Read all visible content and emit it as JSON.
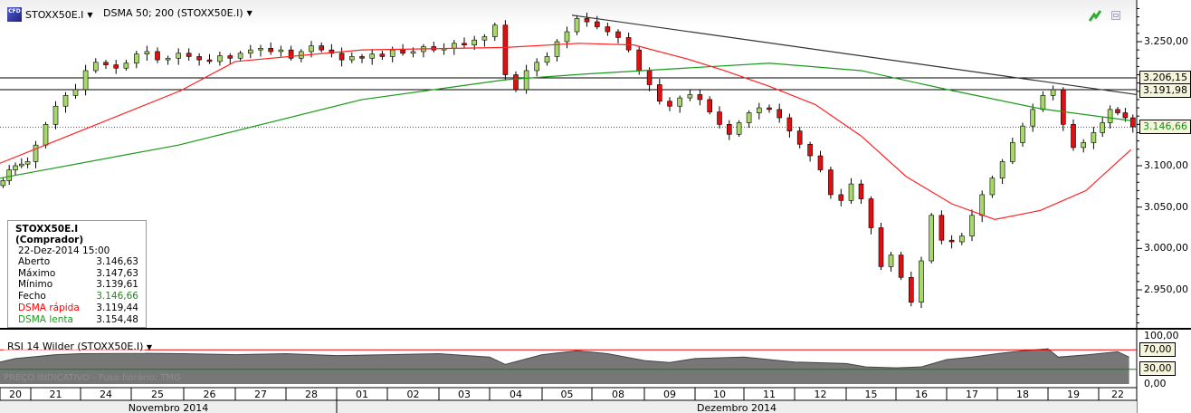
{
  "header": {
    "instrument": "STOXX50E.I",
    "indicator": "DSMA 50; 200 (STOXX50E.I)",
    "cfd_badge": "CFD"
  },
  "legend": {
    "title": "STOXX50E.I (Comprador)",
    "datetime": "22-Dez-2014 15:00",
    "rows": [
      {
        "label": "Aberto",
        "value": "3.146,63"
      },
      {
        "label": "Máximo",
        "value": "3.147,63"
      },
      {
        "label": "Mínimo",
        "value": "3.139,61"
      },
      {
        "label": "Fecho",
        "value": "3.146,66"
      },
      {
        "label": "DSMA rápida",
        "value": "3.119,44"
      },
      {
        "label": "DSMA lenta",
        "value": "3.154,48"
      }
    ]
  },
  "price_axis": {
    "ticks": [
      "3.250,00",
      "3.100,00",
      "3.050,00",
      "3.000,00",
      "2.950,00"
    ],
    "tags": [
      "3.206,15",
      "3.191,98",
      "3.146,66"
    ]
  },
  "rsi": {
    "title": "RSI 14 Wilder (STOXX50E.I)",
    "ticks": [
      "100,00",
      "0,00"
    ],
    "tags": [
      "70,00",
      "30,00"
    ]
  },
  "watermark": "PREÇO INDICATIVO - Fuso horário: TMG",
  "days": [
    "20",
    "21",
    "24",
    "25",
    "26",
    "27",
    "28",
    "01",
    "02",
    "03",
    "04",
    "05",
    "08",
    "09",
    "10",
    "11",
    "12",
    "15",
    "16",
    "17",
    "18",
    "19",
    "22"
  ],
  "months": [
    "Novembro 2014",
    "Dezembro 2014"
  ],
  "colors": {
    "up": "#a6d96a",
    "down": "#e01010",
    "fast_ma": "#ff2020",
    "slow_ma": "#1a9a1a",
    "last": "#1a8a1a"
  },
  "chart_data": {
    "type": "candlestick",
    "ylim": [
      2910,
      3290
    ],
    "closes_by_day": [
      [
        3082,
        3095,
        3100,
        3102,
        3105
      ],
      [
        3125,
        3150,
        3172,
        3185,
        3192
      ],
      [
        3215,
        3225,
        3222,
        3218,
        3224
      ],
      [
        3235,
        3238,
        3228,
        3230,
        3236
      ],
      [
        3232,
        3228,
        3226,
        3233,
        3230
      ],
      [
        3236,
        3240,
        3242,
        3238,
        3240
      ],
      [
        3230,
        3238,
        3245,
        3240,
        3236
      ],
      [
        3228,
        3232,
        3230,
        3235,
        3232
      ],
      [
        3240,
        3236,
        3238,
        3244,
        3240
      ],
      [
        3242,
        3248,
        3246,
        3252,
        3256
      ],
      [
        3270,
        3210,
        3192,
        3215,
        3225
      ],
      [
        3232,
        3250,
        3262,
        3278,
        3274
      ],
      [
        3268,
        3262,
        3255,
        3240,
        3215
      ],
      [
        3198,
        3178,
        3172,
        3182,
        3186
      ],
      [
        3180,
        3165,
        3150,
        3138,
        3152
      ],
      [
        3164,
        3170,
        3168,
        3158,
        3142
      ],
      [
        3126,
        3112,
        3095,
        3065,
        3058
      ],
      [
        3078,
        3060,
        3025,
        2978,
        2992
      ],
      [
        2965,
        2935,
        2985,
        3040,
        3010
      ],
      [
        3008,
        3015,
        3040,
        3065,
        3085
      ],
      [
        3105,
        3128,
        3148,
        3168,
        3185
      ],
      [
        3192,
        3150,
        3122,
        3128,
        3140
      ],
      [
        3152,
        3168,
        3164,
        3158,
        3147
      ]
    ],
    "fast_ma": [
      [
        0,
        3103
      ],
      [
        2.2,
        3147
      ],
      [
        3.95,
        3191
      ],
      [
        5,
        3226
      ],
      [
        7.5,
        3240
      ],
      [
        10.3,
        3243
      ],
      [
        11.75,
        3248
      ],
      [
        12.8,
        3246
      ],
      [
        13.85,
        3229
      ],
      [
        14.6,
        3215
      ],
      [
        15.5,
        3196
      ],
      [
        16.4,
        3174
      ],
      [
        17.3,
        3136
      ],
      [
        18.2,
        3087
      ],
      [
        19.1,
        3054
      ],
      [
        19.95,
        3035
      ],
      [
        20.85,
        3046
      ],
      [
        21.75,
        3070
      ],
      [
        22.85,
        3119.44
      ]
    ],
    "slow_ma": [
      [
        0,
        3085
      ],
      [
        3.9,
        3125
      ],
      [
        7.5,
        3180
      ],
      [
        10.3,
        3204
      ],
      [
        11.9,
        3211
      ],
      [
        15.5,
        3224
      ],
      [
        17.3,
        3215
      ],
      [
        19.1,
        3191
      ],
      [
        20.85,
        3169
      ],
      [
        22.85,
        3154.48
      ]
    ],
    "trendline": [
      [
        11.6,
        3282
      ],
      [
        23,
        3186
      ]
    ],
    "hlines": [
      3206.15,
      3191.98
    ],
    "last": 3146.66,
    "rsi_levels": [
      70,
      30
    ],
    "rsi_values": [
      [
        0,
        45
      ],
      [
        0.5,
        52
      ],
      [
        1,
        55
      ],
      [
        1.5,
        60
      ],
      [
        2,
        62
      ],
      [
        3,
        63
      ],
      [
        4,
        62
      ],
      [
        5,
        60
      ],
      [
        6,
        62
      ],
      [
        7,
        58
      ],
      [
        8,
        60
      ],
      [
        9,
        62
      ],
      [
        10,
        55
      ],
      [
        10.3,
        40
      ],
      [
        11,
        60
      ],
      [
        11.7,
        68
      ],
      [
        12.3,
        62
      ],
      [
        13,
        48
      ],
      [
        13.5,
        44
      ],
      [
        14,
        52
      ],
      [
        15,
        55
      ],
      [
        16,
        45
      ],
      [
        17,
        42
      ],
      [
        17.4,
        35
      ],
      [
        18,
        33
      ],
      [
        18.5,
        35
      ],
      [
        19,
        50
      ],
      [
        19.5,
        55
      ],
      [
        20,
        62
      ],
      [
        20.5,
        68
      ],
      [
        21,
        72
      ],
      [
        21.2,
        55
      ],
      [
        21.8,
        60
      ],
      [
        22.5,
        66
      ],
      [
        22.8,
        55
      ]
    ]
  }
}
